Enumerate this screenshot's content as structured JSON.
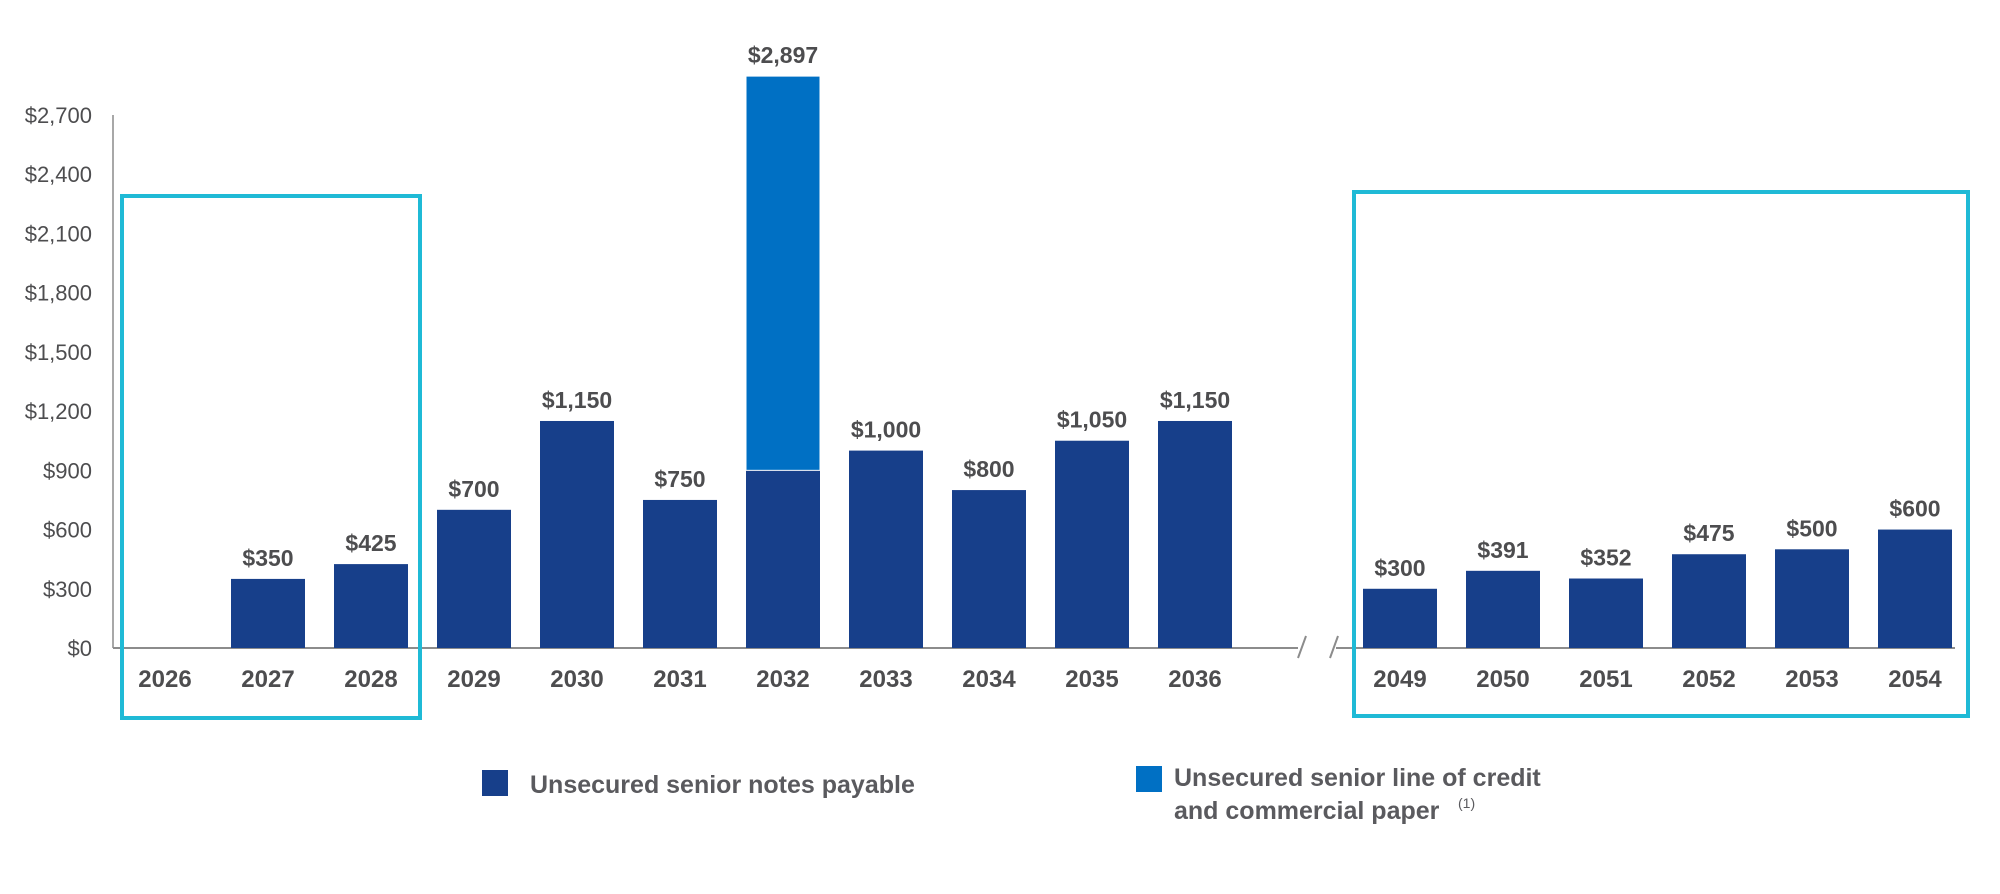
{
  "colors": {
    "notes": "#173f8a",
    "credit": "#0070c4",
    "highlight": "#1fbad6",
    "axis": "#8c8c8c",
    "text": "#4d4d4f"
  },
  "legend": {
    "notes_label": "Unsecured senior notes payable",
    "credit_label_line1": "Unsecured senior line of credit",
    "credit_label_line2": "and commercial paper",
    "credit_label_sup": "(1)"
  },
  "chart_data": {
    "type": "bar",
    "stacked": true,
    "title": "",
    "xlabel": "",
    "ylabel": "",
    "ylim": [
      0,
      2700
    ],
    "y_ticks": [
      0,
      300,
      600,
      900,
      1200,
      1500,
      1800,
      2100,
      2400,
      2700
    ],
    "y_tick_labels": [
      "$0",
      "$300",
      "$600",
      "$900",
      "$1,200",
      "$1,500",
      "$1,800",
      "$2,100",
      "$2,400",
      "$2,700"
    ],
    "axis_break": "between 2036 and 2049",
    "categories": [
      "2026",
      "2027",
      "2028",
      "2029",
      "2030",
      "2031",
      "2032",
      "2033",
      "2034",
      "2035",
      "2036",
      "2049",
      "2050",
      "2051",
      "2052",
      "2053",
      "2054"
    ],
    "series": [
      {
        "name": "Unsecured senior notes payable",
        "color": "#173f8a",
        "values": [
          0,
          350,
          425,
          700,
          1150,
          750,
          900,
          1000,
          800,
          1050,
          1150,
          300,
          391,
          352,
          475,
          500,
          600
        ]
      },
      {
        "name": "Unsecured senior line of credit and commercial paper",
        "color": "#0070c4",
        "values": [
          0,
          0,
          0,
          0,
          0,
          0,
          1997,
          0,
          0,
          0,
          0,
          0,
          0,
          0,
          0,
          0,
          0
        ]
      }
    ],
    "total_labels": [
      "",
      "$350",
      "$425",
      "$700",
      "$1,150",
      "$750",
      "$2,897",
      "$1,000",
      "$800",
      "$1,050",
      "$1,150",
      "$300",
      "$391",
      "$352",
      "$475",
      "$500",
      "$600"
    ],
    "highlight_groups": [
      [
        "2026",
        "2027",
        "2028"
      ],
      [
        "2049",
        "2050",
        "2051",
        "2052",
        "2053",
        "2054"
      ]
    ],
    "legend_position": "bottom",
    "grid": false
  }
}
